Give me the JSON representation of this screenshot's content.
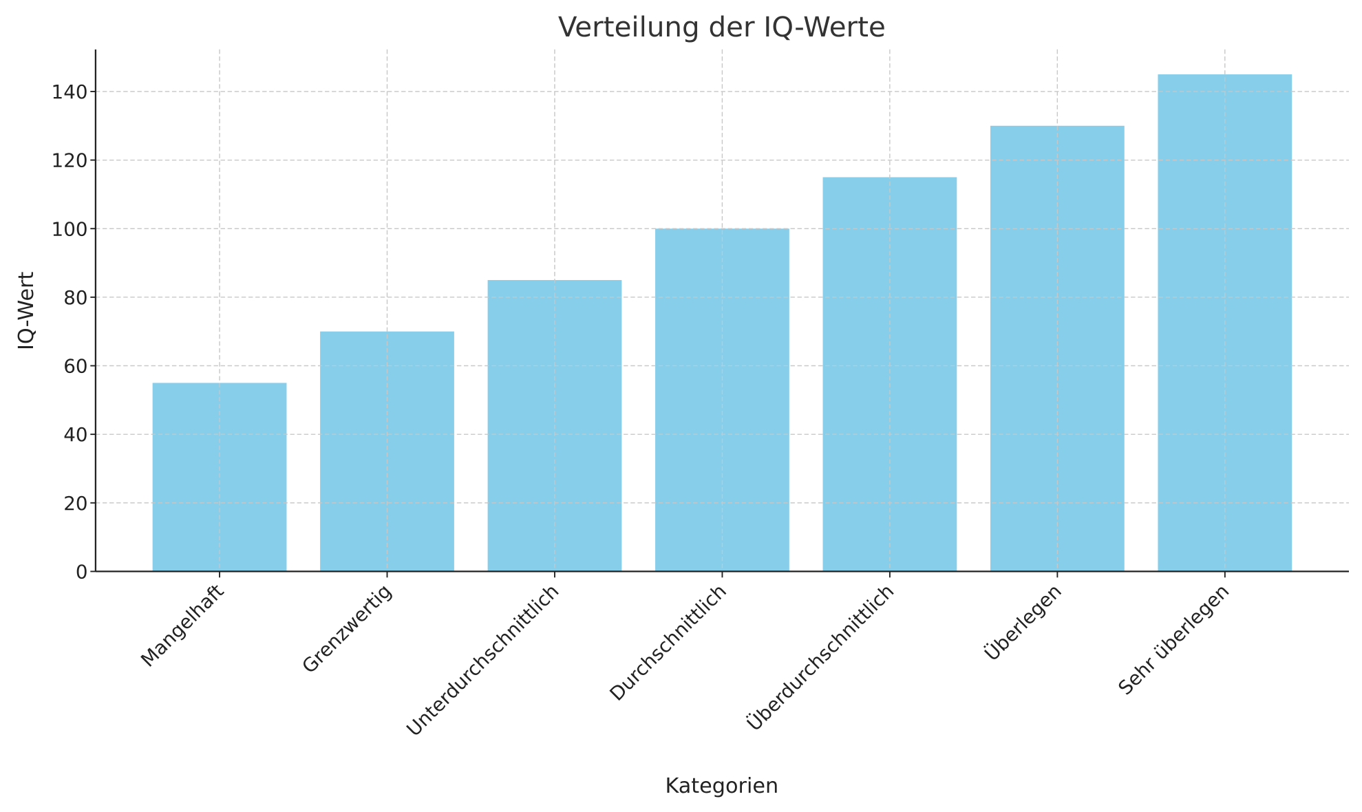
{
  "chart_data": {
    "type": "bar",
    "title": "Verteilung der IQ-Werte",
    "xlabel": "Kategorien",
    "ylabel": "IQ-Wert",
    "categories": [
      "Mangelhaft",
      "Grenzwertig",
      "Unterdurchschnittlich",
      "Durchschnittlich",
      "Überdurchschnittlich",
      "Überlegen",
      "Sehr überlegen"
    ],
    "values": [
      55,
      70,
      85,
      100,
      115,
      130,
      145
    ],
    "yticks": [
      0,
      20,
      40,
      60,
      80,
      100,
      120,
      140
    ],
    "ylim": [
      0,
      152.25
    ],
    "grid": true,
    "grid_style": "dashed",
    "bar_color": "#87ceeb",
    "xtick_rotation": 45
  }
}
